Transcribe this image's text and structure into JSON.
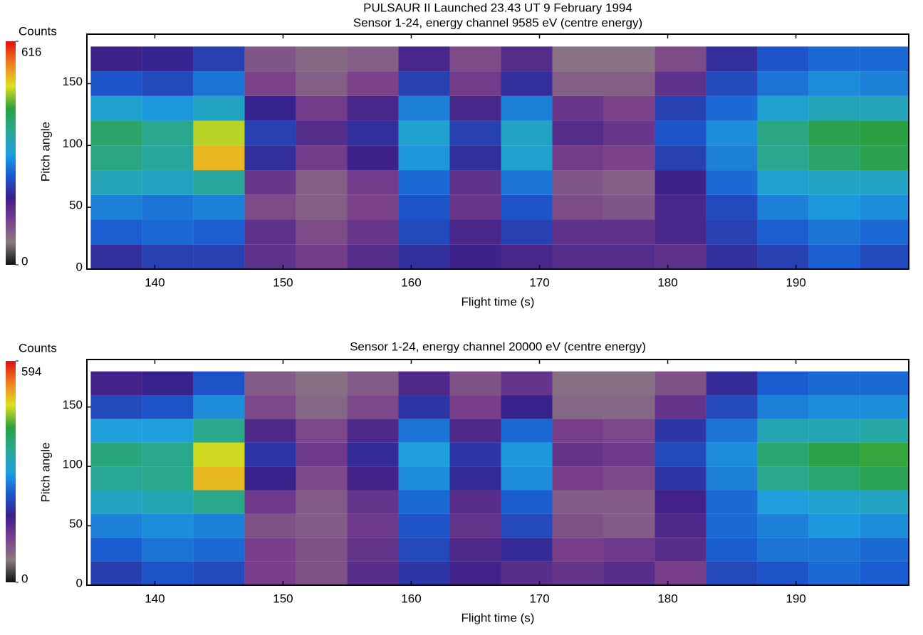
{
  "chart_data": [
    {
      "type": "heatmap",
      "title": "PULSAUR II Launched  23.43 UT  9 February 1994",
      "subtitle": "Sensor 1-24, energy channel 9585 eV (centre energy)",
      "x_label": "Flight time (s)",
      "y_label": "Pitch angle",
      "colorbar_label": "Counts",
      "xlim": [
        134.7,
        198.8
      ],
      "xticks": [
        140,
        150,
        160,
        170,
        180,
        190
      ],
      "ylim": [
        0,
        190
      ],
      "yticks": [
        0,
        50,
        100,
        150
      ],
      "zlim": [
        0,
        616
      ],
      "zticks": [
        0,
        616
      ],
      "colormap": [
        "#111111",
        "#8a7a82",
        "#7a3f8a",
        "#3a1f8a",
        "#1a5ad0",
        "#1ea0e0",
        "#2aa890",
        "#2aa040",
        "#e0e020",
        "#f08020",
        "#e01010"
      ],
      "x_bins": [
        135,
        139,
        143,
        147,
        151,
        155,
        159,
        163,
        167,
        171,
        175,
        179,
        183,
        187,
        191,
        195,
        199
      ],
      "y_bins": [
        0,
        20,
        40,
        60,
        80,
        100,
        120,
        140,
        160,
        180
      ],
      "z": [
        [
          200,
          220,
          220,
          150,
          130,
          160,
          200,
          180,
          170,
          160,
          160,
          150,
          200,
          220,
          250,
          230
        ],
        [
          250,
          260,
          250,
          150,
          110,
          140,
          230,
          170,
          220,
          150,
          150,
          170,
          220,
          250,
          270,
          260
        ],
        [
          280,
          270,
          280,
          110,
          90,
          120,
          240,
          140,
          240,
          110,
          100,
          170,
          230,
          280,
          300,
          290
        ],
        [
          340,
          330,
          360,
          140,
          90,
          130,
          260,
          150,
          270,
          100,
          90,
          180,
          260,
          320,
          330,
          330
        ],
        [
          380,
          360,
          520,
          200,
          130,
          180,
          300,
          200,
          320,
          130,
          120,
          220,
          280,
          370,
          400,
          420
        ],
        [
          400,
          370,
          480,
          220,
          160,
          200,
          320,
          220,
          330,
          160,
          140,
          240,
          290,
          380,
          420,
          430
        ],
        [
          320,
          300,
          330,
          190,
          130,
          170,
          280,
          170,
          280,
          140,
          120,
          220,
          260,
          320,
          340,
          340
        ],
        [
          240,
          230,
          270,
          120,
          90,
          120,
          220,
          130,
          200,
          90,
          90,
          150,
          230,
          270,
          290,
          280
        ],
        [
          180,
          190,
          220,
          100,
          80,
          90,
          170,
          110,
          160,
          70,
          70,
          110,
          200,
          240,
          260,
          260
        ]
      ]
    },
    {
      "type": "heatmap",
      "title": "Sensor 1-24, energy channel 20000 eV (centre energy)",
      "x_label": "Flight time (s)",
      "y_label": "Pitch angle",
      "colorbar_label": "Counts",
      "xlim": [
        134.7,
        198.8
      ],
      "xticks": [
        140,
        150,
        160,
        170,
        180,
        190
      ],
      "ylim": [
        0,
        190
      ],
      "yticks": [
        0,
        50,
        100,
        150
      ],
      "zlim": [
        0,
        594
      ],
      "zticks": [
        0,
        594
      ],
      "colormap": [
        "#111111",
        "#8a7a82",
        "#7a3f8a",
        "#3a1f8a",
        "#1a5ad0",
        "#1ea0e0",
        "#2aa890",
        "#2aa040",
        "#e0e020",
        "#f08020",
        "#e01010"
      ],
      "x_bins": [
        135,
        139,
        143,
        147,
        151,
        155,
        159,
        163,
        167,
        171,
        175,
        179,
        183,
        187,
        191,
        195,
        199
      ],
      "y_bins": [
        0,
        20,
        40,
        60,
        80,
        100,
        120,
        140,
        160,
        180
      ],
      "z": [
        [
          210,
          230,
          220,
          120,
          100,
          150,
          200,
          170,
          150,
          140,
          150,
          120,
          220,
          230,
          250,
          240
        ],
        [
          240,
          260,
          250,
          120,
          100,
          140,
          220,
          160,
          190,
          120,
          130,
          150,
          240,
          260,
          260,
          250
        ],
        [
          270,
          280,
          270,
          100,
          90,
          130,
          230,
          140,
          220,
          100,
          90,
          160,
          250,
          270,
          290,
          280
        ],
        [
          320,
          330,
          360,
          130,
          90,
          140,
          250,
          150,
          240,
          90,
          90,
          170,
          250,
          300,
          310,
          320
        ],
        [
          350,
          360,
          500,
          180,
          110,
          170,
          280,
          190,
          280,
          120,
          110,
          200,
          270,
          360,
          380,
          400
        ],
        [
          370,
          360,
          470,
          200,
          130,
          190,
          300,
          200,
          290,
          140,
          130,
          220,
          280,
          380,
          410,
          420
        ],
        [
          300,
          300,
          360,
          160,
          110,
          160,
          260,
          160,
          250,
          120,
          110,
          200,
          260,
          330,
          330,
          340
        ],
        [
          220,
          230,
          280,
          110,
          80,
          110,
          200,
          120,
          180,
          80,
          80,
          140,
          220,
          270,
          280,
          280
        ],
        [
          170,
          180,
          230,
          90,
          70,
          90,
          160,
          100,
          140,
          70,
          70,
          100,
          190,
          240,
          250,
          250
        ]
      ]
    }
  ]
}
